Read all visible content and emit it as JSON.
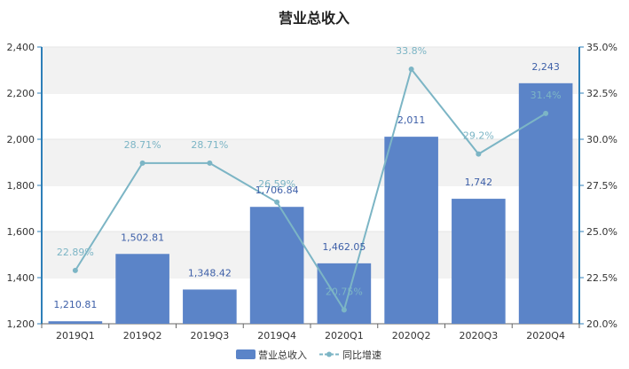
{
  "chart_data": {
    "type": "bar",
    "title": "营业总收入",
    "categories": [
      "2019Q1",
      "2019Q2",
      "2019Q3",
      "2019Q4",
      "2020Q1",
      "2020Q2",
      "2020Q3",
      "2020Q4"
    ],
    "series": [
      {
        "name": "营业总收入",
        "type": "bar",
        "axis": "left",
        "values": [
          1210.81,
          1502.81,
          1348.42,
          1706.84,
          1462.05,
          2011,
          1742,
          2243
        ],
        "labels": [
          "1,210.81",
          "1,502.81",
          "1,348.42",
          "1,706.84",
          "1,462.05",
          "2,011",
          "1,742",
          "2,243"
        ]
      },
      {
        "name": "同比增速",
        "type": "line",
        "axis": "right",
        "values": [
          22.89,
          28.71,
          28.71,
          26.59,
          20.75,
          33.8,
          29.2,
          31.4
        ],
        "labels": [
          "22.89%",
          "28.71%",
          "28.71%",
          "26.59%",
          "20.75%",
          "33.8%",
          "29.2%",
          "31.4%"
        ]
      }
    ],
    "y_left": {
      "min": 1200,
      "max": 2400,
      "ticks": [
        "1,200",
        "1,400",
        "1,600",
        "1,800",
        "2,000",
        "2,200",
        "2,400"
      ]
    },
    "y_right": {
      "min": 20,
      "max": 35,
      "ticks": [
        "20.0%",
        "22.5%",
        "25.0%",
        "27.5%",
        "30.0%",
        "32.5%",
        "35.0%"
      ]
    },
    "legend_position": "bottom-center",
    "colors": {
      "bar": "#5b84c8",
      "line": "#7cb5c5",
      "axis": "#2e7fb8",
      "band": "#f2f2f2"
    }
  }
}
